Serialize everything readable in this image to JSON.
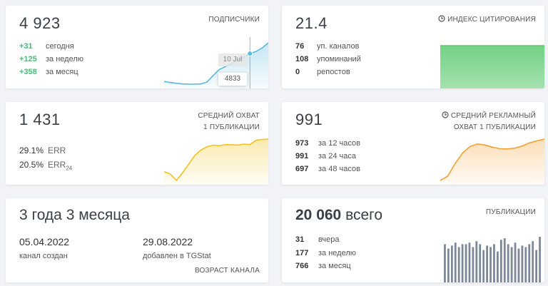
{
  "cards": [
    {
      "value": "4 923",
      "title": "ПОДПИСЧИКИ",
      "rows": [
        {
          "value": "+31",
          "label": "сегодня"
        },
        {
          "value": "+125",
          "label": "за неделю"
        },
        {
          "value": "+358",
          "label": "за месяц"
        }
      ],
      "sparkline": {
        "type": "area",
        "color": "#5bb8de",
        "values": [
          4600,
          4592,
          4585,
          4580,
          4578,
          4578,
          4580,
          4595,
          4650,
          4700,
          4725,
          4750,
          4780,
          4805,
          4833,
          4850,
          4880,
          4923
        ]
      },
      "tooltip": {
        "date": "10 Jul",
        "value": "4833"
      }
    },
    {
      "value": "21.4",
      "title": "ИНДЕКС ЦИТИРОВАНИЯ",
      "rows": [
        {
          "value": "76",
          "label": "уп. каналов"
        },
        {
          "value": "108",
          "label": "упоминаний"
        },
        {
          "value": "0",
          "label": "репостов"
        }
      ],
      "sparkline": {
        "type": "area",
        "color": "#5cc96f",
        "values": [
          21.4,
          21.4,
          21.4,
          21.4,
          21.4,
          21.4,
          21.4,
          21.4
        ]
      }
    },
    {
      "value": "1 431",
      "title": [
        "СРЕДНИЙ ОХВАТ",
        "1 ПУБЛИКАЦИИ"
      ],
      "rows": [
        {
          "value": "29.1%",
          "label": "ERR"
        },
        {
          "value": "20.5%",
          "label": "ERR",
          "label_sub": "24"
        }
      ],
      "sparkline": {
        "type": "area",
        "color": "#f2c21f",
        "values": [
          1130,
          1110,
          1050,
          1120,
          1200,
          1280,
          1330,
          1360,
          1375,
          1370,
          1380,
          1378,
          1376,
          1385,
          1380,
          1420,
          1428,
          1431
        ]
      }
    },
    {
      "value": "991",
      "title": [
        "СРЕДНИЙ РЕКЛАМНЫЙ",
        "ОХВАТ 1 ПУБЛИКАЦИИ"
      ],
      "rows": [
        {
          "value": "973",
          "label": "за 12 часов"
        },
        {
          "value": "991",
          "label": "за 24 часа"
        },
        {
          "value": "697",
          "label": "за 48 часов"
        }
      ],
      "sparkline": {
        "type": "area",
        "color": "#f5a033",
        "values": [
          600,
          640,
          760,
          860,
          920,
          945,
          935,
          915,
          900,
          898,
          905,
          925,
          955,
          975,
          991
        ]
      }
    },
    {
      "value": "3 года 3 месяца",
      "title": "ВОЗРАСТ КАНАЛА",
      "dates": [
        {
          "value": "05.04.2022",
          "label": "канал создан"
        },
        {
          "value": "29.08.2022",
          "label": "добавлен в TGStat"
        }
      ]
    },
    {
      "value": "20 060",
      "value_suffix": "всего",
      "title": "ПУБЛИКАЦИИ",
      "rows": [
        {
          "value": "31",
          "label": "вчера"
        },
        {
          "value": "177",
          "label": "за неделю"
        },
        {
          "value": "766",
          "label": "за месяц"
        }
      ],
      "sparkline": {
        "type": "bar",
        "color": "#7c8797",
        "values": [
          26,
          23,
          25,
          27,
          24,
          26,
          26,
          27,
          24,
          28,
          26,
          22,
          25,
          24,
          26,
          21,
          29,
          30,
          26,
          24,
          27,
          23,
          25,
          24,
          26,
          28,
          22,
          31
        ]
      }
    }
  ]
}
